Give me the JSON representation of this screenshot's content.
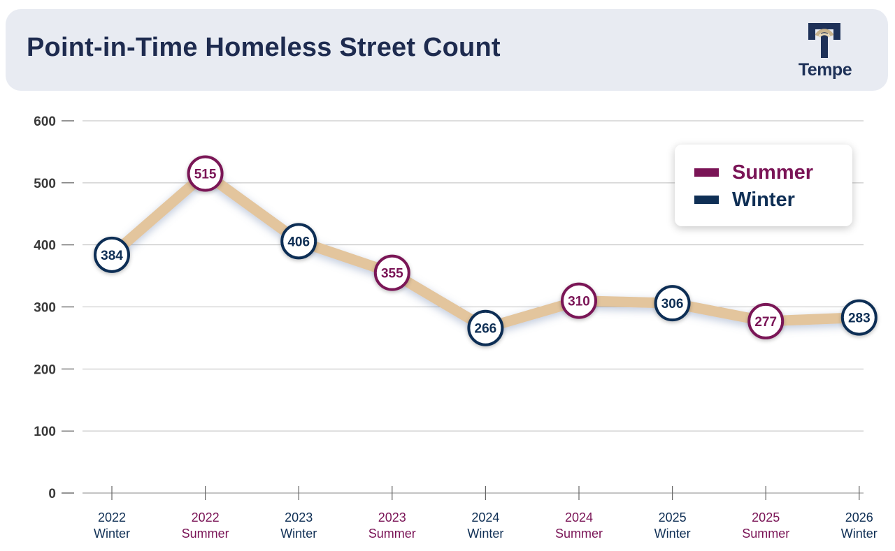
{
  "header": {
    "title": "Point-in-Time Homeless Street Count",
    "logo_text": "Tempe"
  },
  "colors": {
    "summer": "#7a1456",
    "winter": "#0f2f55",
    "line": "#e3c59d",
    "header_bg": "#e8ebf2",
    "title": "#1e2b4f"
  },
  "legend": {
    "position": "top-right",
    "items": [
      {
        "label": "Summer",
        "color": "#7a1456"
      },
      {
        "label": "Winter",
        "color": "#0f2f55"
      }
    ]
  },
  "chart_data": {
    "type": "line",
    "title": "Point-in-Time Homeless Street Count",
    "xlabel": "",
    "ylabel": "",
    "ylim": [
      0,
      600
    ],
    "yticks": [
      "0",
      "100",
      "200",
      "300",
      "400",
      "500",
      "600"
    ],
    "grid": true,
    "categories": [
      {
        "year": "2022",
        "season": "Winter"
      },
      {
        "year": "2022",
        "season": "Summer"
      },
      {
        "year": "2023",
        "season": "Winter"
      },
      {
        "year": "2023",
        "season": "Summer"
      },
      {
        "year": "2024",
        "season": "Winter"
      },
      {
        "year": "2024",
        "season": "Summer"
      },
      {
        "year": "2025",
        "season": "Winter"
      },
      {
        "year": "2025",
        "season": "Summer"
      },
      {
        "year": "2026",
        "season": "Winter"
      }
    ],
    "values": [
      384,
      515,
      406,
      355,
      266,
      310,
      306,
      277,
      283
    ],
    "labels": [
      "384",
      "515",
      "406",
      "355",
      "266",
      "310",
      "306",
      "277",
      "283"
    ]
  }
}
